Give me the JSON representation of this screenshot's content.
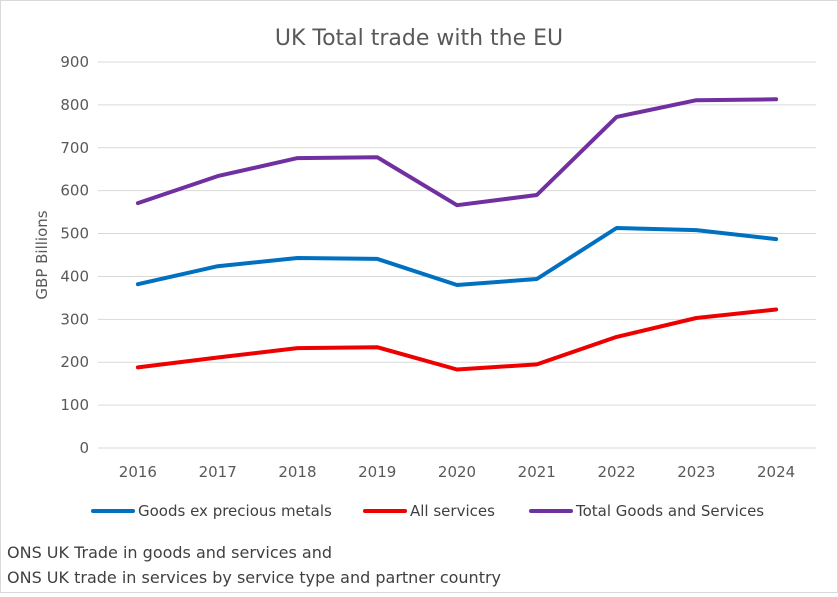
{
  "chart_data": {
    "type": "line",
    "title": "UK Total trade with the EU",
    "xlabel": "",
    "ylabel": "GBP Billions",
    "ylim": [
      0,
      900
    ],
    "yticks": [
      0,
      100,
      200,
      300,
      400,
      500,
      600,
      700,
      800,
      900
    ],
    "categories": [
      "2016",
      "2017",
      "2018",
      "2019",
      "2020",
      "2021",
      "2022",
      "2023",
      "2024"
    ],
    "grid": true,
    "legend_position": "bottom",
    "series": [
      {
        "name": "Goods ex precious metals",
        "color": "#0070c0",
        "values": [
          382,
          424,
          443,
          441,
          380,
          394,
          513,
          508,
          487
        ]
      },
      {
        "name": "All services",
        "color": "#ee0000",
        "values": [
          188,
          211,
          233,
          235,
          183,
          195,
          259,
          303,
          323
        ]
      },
      {
        "name": "Total Goods and Services",
        "color": "#7030a0",
        "values": [
          571,
          634,
          676,
          678,
          566,
          590,
          772,
          811,
          813
        ]
      }
    ],
    "source": [
      "ONS UK Trade in goods and services and",
      "ONS UK trade in services by service type and partner country"
    ]
  }
}
